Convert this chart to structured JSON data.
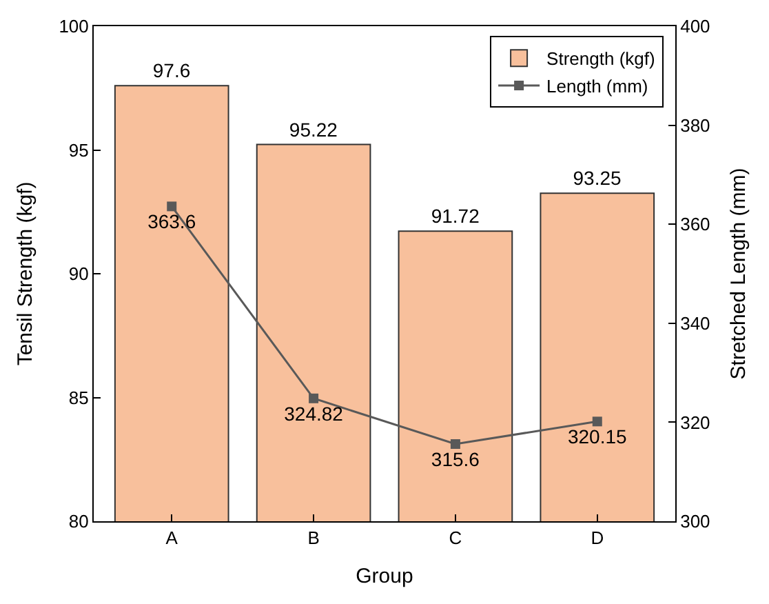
{
  "chart_data": {
    "type": "bar",
    "categories": [
      "A",
      "B",
      "C",
      "D"
    ],
    "xlabel": "Group",
    "ylabel": "Tensil Strength (kgf)",
    "y2label": "Stretched Length (mm)",
    "series": [
      {
        "name": "Strength (kgf)",
        "color": "#f8c09c",
        "values": [
          97.6,
          95.22,
          91.72,
          93.25
        ]
      },
      {
        "name": "Length (mm)",
        "type": "line",
        "axis": "y2",
        "color": "#595959",
        "values": [
          363.6,
          324.82,
          315.6,
          320.15
        ]
      }
    ],
    "ylim": [
      80,
      100
    ],
    "yticks": [
      80,
      85,
      90,
      95,
      100
    ],
    "y2lim": [
      300,
      400
    ],
    "y2ticks": [
      300,
      320,
      340,
      360,
      380,
      400
    ],
    "data_labels": true,
    "legend": "top right",
    "marker": "square",
    "line_style": "solid"
  }
}
